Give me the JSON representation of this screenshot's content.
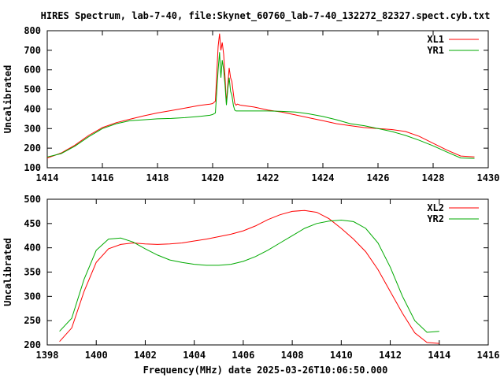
{
  "title": "HIRES Spectrum, lab-7-40, file:Skynet_60760_lab-7-40_132272_82327.spect.cyb.txt",
  "xlabel_bottom": "Frequency(MHz) date 2025-03-26T10:06:50.000",
  "colors": {
    "red": "#ff0000",
    "green": "#00aa00"
  },
  "chart_data": [
    {
      "type": "line",
      "title": "HIRES Spectrum, lab-7-40, file:Skynet_60760_lab-7-40_132272_82327.spect.cyb.txt",
      "xlabel": "",
      "ylabel": "Uncalibrated",
      "xlim": [
        1414,
        1430
      ],
      "ylim": [
        100,
        800
      ],
      "xticks": [
        "1414",
        "1416",
        "1418",
        "1420",
        "1422",
        "1424",
        "1426",
        "1428",
        "1430"
      ],
      "yticks": [
        "100",
        "200",
        "300",
        "400",
        "500",
        "600",
        "700",
        "800"
      ],
      "legend_position": "top-right",
      "grid": false,
      "series": [
        {
          "name": "XL1",
          "color": "#ff0000",
          "x": [
            1414.0,
            1414.5,
            1415.0,
            1415.5,
            1416.0,
            1416.5,
            1417.0,
            1417.5,
            1418.0,
            1418.5,
            1419.0,
            1419.5,
            1419.9,
            1420.0,
            1420.1,
            1420.2,
            1420.25,
            1420.3,
            1420.35,
            1420.4,
            1420.45,
            1420.5,
            1420.55,
            1420.6,
            1420.65,
            1420.7,
            1420.75,
            1420.8,
            1420.85,
            1420.9,
            1421.0,
            1421.5,
            1422.0,
            1422.5,
            1423.0,
            1423.5,
            1424.0,
            1424.5,
            1425.0,
            1425.5,
            1426.0,
            1426.5,
            1427.0,
            1427.5,
            1428.0,
            1428.5,
            1429.0,
            1429.5
          ],
          "y": [
            150,
            175,
            215,
            265,
            305,
            330,
            348,
            365,
            380,
            392,
            405,
            418,
            425,
            428,
            440,
            720,
            785,
            700,
            740,
            680,
            560,
            430,
            520,
            610,
            560,
            540,
            480,
            430,
            420,
            425,
            420,
            410,
            395,
            385,
            370,
            355,
            340,
            325,
            315,
            305,
            300,
            295,
            285,
            260,
            225,
            190,
            160,
            155
          ]
        },
        {
          "name": "YR1",
          "color": "#00aa00",
          "x": [
            1414.0,
            1414.5,
            1415.0,
            1415.5,
            1416.0,
            1416.5,
            1417.0,
            1417.5,
            1418.0,
            1418.5,
            1419.0,
            1419.5,
            1419.9,
            1420.0,
            1420.1,
            1420.2,
            1420.25,
            1420.3,
            1420.35,
            1420.4,
            1420.45,
            1420.5,
            1420.55,
            1420.6,
            1420.65,
            1420.7,
            1420.75,
            1420.8,
            1420.85,
            1420.9,
            1421.0,
            1421.5,
            1422.0,
            1422.5,
            1423.0,
            1423.5,
            1424.0,
            1424.5,
            1425.0,
            1425.5,
            1426.0,
            1426.5,
            1427.0,
            1427.5,
            1428.0,
            1428.5,
            1429.0,
            1429.5
          ],
          "y": [
            155,
            172,
            210,
            258,
            300,
            325,
            340,
            345,
            350,
            352,
            356,
            362,
            368,
            372,
            380,
            600,
            690,
            560,
            650,
            600,
            520,
            420,
            500,
            560,
            490,
            470,
            420,
            395,
            390,
            390,
            390,
            390,
            390,
            388,
            385,
            375,
            362,
            345,
            325,
            315,
            300,
            285,
            265,
            240,
            212,
            180,
            150,
            148
          ]
        }
      ]
    },
    {
      "type": "line",
      "title": "",
      "xlabel": "Frequency(MHz) date 2025-03-26T10:06:50.000",
      "ylabel": "Uncalibrated",
      "xlim": [
        1398,
        1416
      ],
      "ylim": [
        200,
        500
      ],
      "xticks": [
        "1398",
        "1400",
        "1402",
        "1404",
        "1406",
        "1408",
        "1410",
        "1412",
        "1414",
        "1416"
      ],
      "yticks": [
        "200",
        "250",
        "300",
        "350",
        "400",
        "450",
        "500"
      ],
      "legend_position": "top-right",
      "grid": false,
      "series": [
        {
          "name": "XL2",
          "color": "#ff0000",
          "x": [
            1398.5,
            1399.0,
            1399.5,
            1400.0,
            1400.5,
            1401.0,
            1401.5,
            1402.0,
            1402.5,
            1403.0,
            1403.5,
            1404.0,
            1404.5,
            1405.0,
            1405.5,
            1406.0,
            1406.5,
            1407.0,
            1407.5,
            1408.0,
            1408.5,
            1409.0,
            1409.5,
            1410.0,
            1410.5,
            1411.0,
            1411.5,
            1412.0,
            1412.5,
            1413.0,
            1413.5,
            1414.0
          ],
          "y": [
            207,
            235,
            310,
            370,
            398,
            407,
            410,
            408,
            407,
            408,
            410,
            414,
            418,
            423,
            428,
            435,
            445,
            458,
            468,
            475,
            477,
            473,
            460,
            440,
            418,
            392,
            355,
            310,
            265,
            225,
            205,
            203
          ]
        },
        {
          "name": "YR2",
          "color": "#00aa00",
          "x": [
            1398.5,
            1399.0,
            1399.5,
            1400.0,
            1400.5,
            1401.0,
            1401.5,
            1402.0,
            1402.5,
            1403.0,
            1403.5,
            1404.0,
            1404.5,
            1405.0,
            1405.5,
            1406.0,
            1406.5,
            1407.0,
            1407.5,
            1408.0,
            1408.5,
            1409.0,
            1409.5,
            1410.0,
            1410.5,
            1411.0,
            1411.5,
            1412.0,
            1412.5,
            1413.0,
            1413.5,
            1414.0
          ],
          "y": [
            228,
            255,
            335,
            395,
            418,
            420,
            412,
            398,
            385,
            375,
            370,
            366,
            364,
            364,
            366,
            372,
            382,
            395,
            410,
            425,
            440,
            450,
            455,
            457,
            454,
            440,
            410,
            360,
            300,
            250,
            226,
            228
          ]
        }
      ]
    }
  ]
}
